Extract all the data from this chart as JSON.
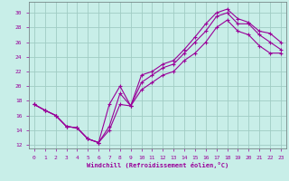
{
  "bg_color": "#c8eee8",
  "line_color": "#990099",
  "grid_color": "#a0ccc4",
  "xlabel": "Windchill (Refroidissement éolien,°C)",
  "xlim": [
    -0.5,
    23.5
  ],
  "ylim": [
    11.5,
    31.5
  ],
  "yticks": [
    12,
    14,
    16,
    18,
    20,
    22,
    24,
    26,
    28,
    30
  ],
  "xticks": [
    0,
    1,
    2,
    3,
    4,
    5,
    6,
    7,
    8,
    9,
    10,
    11,
    12,
    13,
    14,
    15,
    16,
    17,
    18,
    19,
    20,
    21,
    22,
    23
  ],
  "line1_x": [
    0,
    1,
    2,
    3,
    4,
    5,
    6,
    7,
    8,
    9,
    10,
    11,
    12,
    13,
    14,
    15,
    16,
    17,
    18,
    19,
    20,
    21,
    22,
    23
  ],
  "line1_y": [
    17.5,
    16.7,
    16.0,
    14.5,
    14.3,
    12.8,
    12.3,
    17.5,
    20.0,
    17.3,
    21.5,
    22.0,
    23.0,
    23.5,
    25.0,
    26.7,
    28.5,
    30.0,
    30.5,
    29.2,
    28.7,
    27.5,
    27.2,
    26.0
  ],
  "line2_x": [
    0,
    1,
    2,
    3,
    4,
    5,
    6,
    7,
    8,
    9,
    10,
    11,
    12,
    13,
    14,
    15,
    16,
    17,
    18,
    19,
    20,
    21,
    22,
    23
  ],
  "line2_y": [
    17.5,
    16.7,
    16.0,
    14.5,
    14.3,
    12.8,
    12.3,
    14.5,
    19.0,
    17.3,
    20.5,
    21.5,
    22.5,
    23.0,
    24.5,
    26.0,
    27.5,
    29.5,
    30.0,
    28.5,
    28.5,
    27.0,
    26.0,
    25.0
  ],
  "line3_x": [
    0,
    1,
    2,
    3,
    4,
    5,
    6,
    7,
    8,
    9,
    10,
    11,
    12,
    13,
    14,
    15,
    16,
    17,
    18,
    19,
    20,
    21,
    22,
    23
  ],
  "line3_y": [
    17.5,
    16.7,
    16.0,
    14.5,
    14.3,
    12.8,
    12.3,
    14.0,
    17.5,
    17.3,
    19.5,
    20.5,
    21.5,
    22.0,
    23.5,
    24.5,
    26.0,
    28.0,
    29.0,
    27.5,
    27.0,
    25.5,
    24.5,
    24.5
  ]
}
